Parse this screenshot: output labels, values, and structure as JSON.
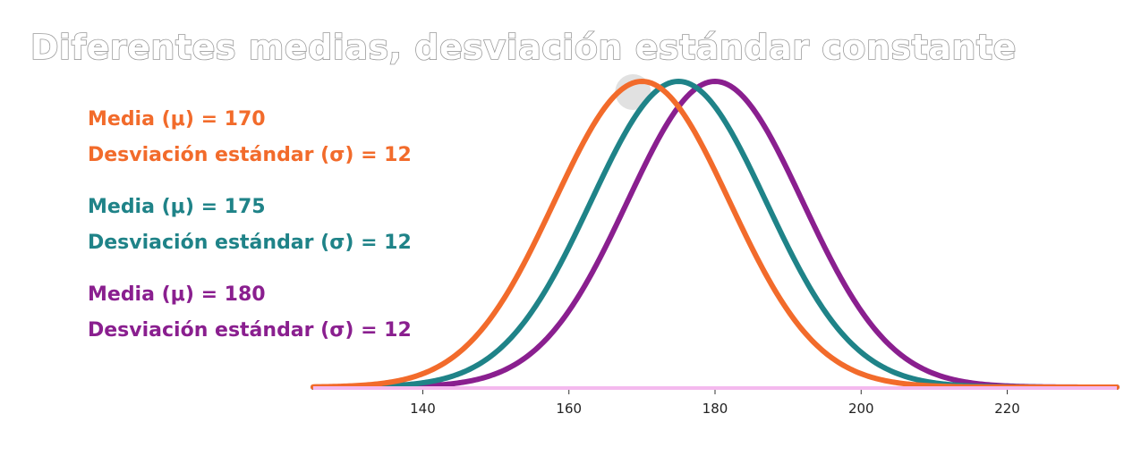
{
  "chart_data": {
    "type": "line",
    "title": "Diferentes medias, desviación estándar constante",
    "xlabel": "",
    "ylabel": "",
    "xlim": [
      125,
      235
    ],
    "x_ticks": [
      "140",
      "160",
      "180",
      "200",
      "220"
    ],
    "grid": false,
    "legend_placement": "left",
    "series": [
      {
        "mean": 170,
        "sd": 12,
        "color": "#f26b2b",
        "legend": [
          "Media (μ) = 170",
          "Desviación estándar (σ) = 12"
        ]
      },
      {
        "mean": 175,
        "sd": 12,
        "color": "#1f8388",
        "legend": [
          "Media (μ) = 175",
          "Desviación estándar (σ) = 12"
        ]
      },
      {
        "mean": 180,
        "sd": 12,
        "color": "#8a1f8f",
        "legend": [
          "Media (μ) = 180",
          "Desviación estándar (σ) = 12"
        ]
      }
    ],
    "baseline_color": "#f4b9ee"
  }
}
